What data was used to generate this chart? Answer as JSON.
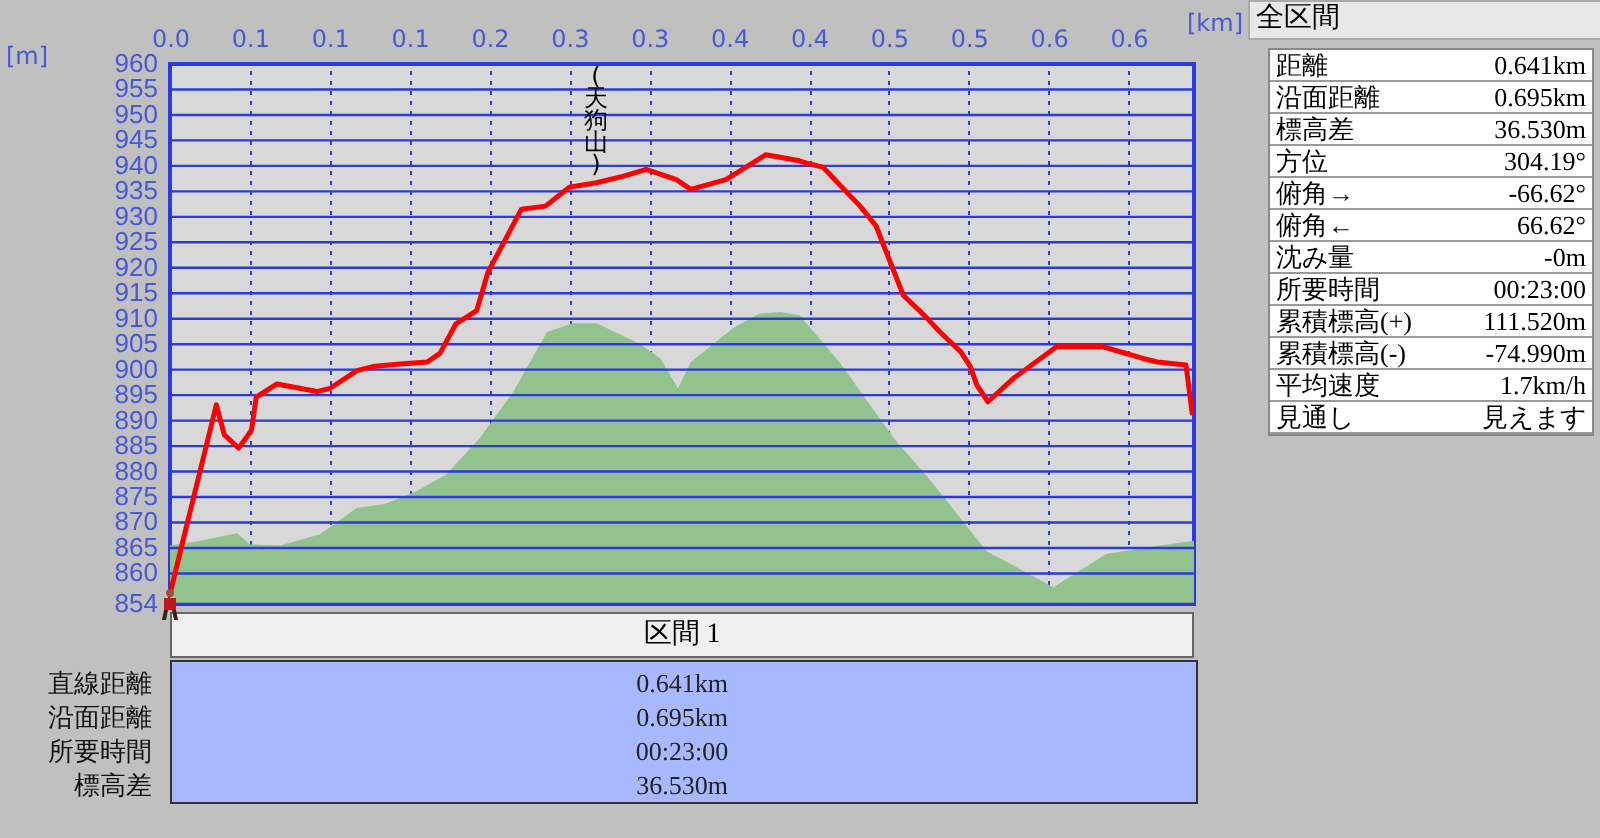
{
  "chart_data": {
    "type": "line",
    "xlabel": "[km]",
    "ylabel": "[m]",
    "xlim": [
      0,
      0.641
    ],
    "ylim": [
      854,
      960
    ],
    "xticks": [
      {
        "value": 0,
        "label": "0.0"
      },
      {
        "value": 0.05,
        "label": "0.1"
      },
      {
        "value": 0.1,
        "label": "0.1"
      },
      {
        "value": 0.15,
        "label": "0.1"
      },
      {
        "value": 0.2,
        "label": "0.2"
      },
      {
        "value": 0.25,
        "label": "0.3"
      },
      {
        "value": 0.3,
        "label": "0.3"
      },
      {
        "value": 0.35,
        "label": "0.4"
      },
      {
        "value": 0.4,
        "label": "0.4"
      },
      {
        "value": 0.45,
        "label": "0.5"
      },
      {
        "value": 0.5,
        "label": "0.5"
      },
      {
        "value": 0.55,
        "label": "0.6"
      },
      {
        "value": 0.6,
        "label": "0.6"
      }
    ],
    "yticks": [
      854,
      860,
      865,
      870,
      875,
      880,
      885,
      890,
      895,
      900,
      905,
      910,
      915,
      920,
      925,
      930,
      935,
      940,
      945,
      950,
      955,
      960
    ],
    "grid": true,
    "marker": "none",
    "line_style": "solid",
    "series": [
      {
        "type": "area",
        "color": "#92c28e",
        "x": [
          0,
          0.019,
          0.042,
          0.05,
          0.069,
          0.094,
          0.117,
          0.134,
          0.154,
          0.173,
          0.194,
          0.215,
          0.236,
          0.252,
          0.267,
          0.294,
          0.307,
          0.318,
          0.326,
          0.353,
          0.369,
          0.382,
          0.394,
          0.419,
          0.453,
          0.478,
          0.511,
          0.553,
          0.586,
          0.62,
          0.641
        ],
        "values": [
          865.5,
          866.4,
          867.9,
          865.7,
          865.5,
          867.7,
          872.9,
          873.6,
          876.1,
          879.4,
          886.6,
          895.7,
          907.4,
          909.1,
          909.1,
          905.1,
          902.2,
          896.3,
          901.5,
          908.3,
          911,
          911.3,
          910.7,
          901.5,
          886.6,
          877.5,
          864.4,
          857.3,
          863.8,
          865.5,
          866.4
        ]
      },
      {
        "type": "line",
        "color": "#ff0000",
        "x": [
          0,
          0.029,
          0.034,
          0.043,
          0.051,
          0.054,
          0.067,
          0.092,
          0.1,
          0.117,
          0.127,
          0.144,
          0.161,
          0.169,
          0.179,
          0.192,
          0.199,
          0.209,
          0.22,
          0.235,
          0.25,
          0.267,
          0.284,
          0.298,
          0.317,
          0.326,
          0.348,
          0.373,
          0.394,
          0.398,
          0.409,
          0.424,
          0.432,
          0.442,
          0.459,
          0.472,
          0.482,
          0.495,
          0.501,
          0.505,
          0.512,
          0.528,
          0.555,
          0.584,
          0.609,
          0.618,
          0.636,
          0.64
        ],
        "values": [
          856,
          893.1,
          887.2,
          884.6,
          888.1,
          894.6,
          897.2,
          895.7,
          896.3,
          899.8,
          900.6,
          901.1,
          901.5,
          903.2,
          909,
          911.6,
          919.1,
          925,
          931.5,
          932.1,
          935.8,
          936.7,
          938,
          939.3,
          937.3,
          935.4,
          937.3,
          942.2,
          941,
          940.6,
          939.7,
          934.7,
          932.1,
          928.2,
          914.6,
          910.7,
          907.4,
          903.5,
          900.6,
          897,
          893.7,
          898.3,
          904.5,
          904.5,
          902.2,
          901.5,
          900.9,
          891.1
        ]
      }
    ],
    "annotations": [
      "(天狗山)",
      "全区間",
      "距離",
      "0.641km",
      "沿面距離",
      "0.695km",
      "標高差",
      "36.530m",
      "方位",
      "304.19°",
      "俯角→",
      "-66.62°",
      "俯角←",
      "66.62°",
      "沈み量",
      "-0m",
      "所要時間",
      "00:23:00",
      "累積標高(+)",
      "111.520m",
      "累積標高(-)",
      "-74.990m",
      "平均速度",
      "1.7km/h",
      "見通し",
      "見えます",
      "区間 1",
      "直線距離",
      "0.641km",
      "沿面距離",
      "0.695km",
      "所要時間",
      "00:23:00",
      "標高差",
      "36.530m"
    ]
  }
}
